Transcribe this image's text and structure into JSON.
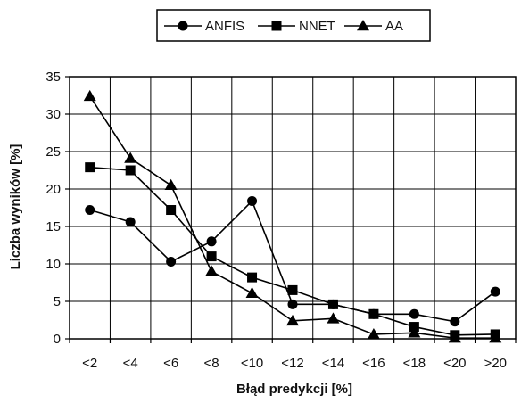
{
  "chart_data": {
    "type": "line",
    "categories": [
      "<2",
      "<4",
      "<6",
      "<8",
      "<10",
      "<12",
      "<14",
      "<16",
      "<18",
      "<20",
      ">20"
    ],
    "series": [
      {
        "name": "ANFIS",
        "marker": "circle",
        "values": [
          17.2,
          15.6,
          10.3,
          13.0,
          18.4,
          4.6,
          4.6,
          3.3,
          3.3,
          2.3,
          6.3
        ]
      },
      {
        "name": "NNET",
        "marker": "square",
        "values": [
          22.9,
          22.5,
          17.2,
          11.0,
          8.2,
          6.5,
          4.6,
          3.3,
          1.6,
          0.5,
          0.6
        ]
      },
      {
        "name": "AA",
        "marker": "triangle",
        "values": [
          32.4,
          24.1,
          20.5,
          9.0,
          6.1,
          2.4,
          2.7,
          0.6,
          0.8,
          0.1,
          0.1
        ]
      }
    ],
    "title": "",
    "xlabel": "Błąd predykcji [%]",
    "ylabel": "Liczba wyników [%]",
    "ylim": [
      0,
      35
    ],
    "yticks": [
      0,
      5,
      10,
      15,
      20,
      25,
      30,
      35
    ],
    "grid": true,
    "legend_position": "top-center",
    "colors": {
      "line": "#000000",
      "grid": "#000000",
      "background": "#ffffff"
    }
  }
}
